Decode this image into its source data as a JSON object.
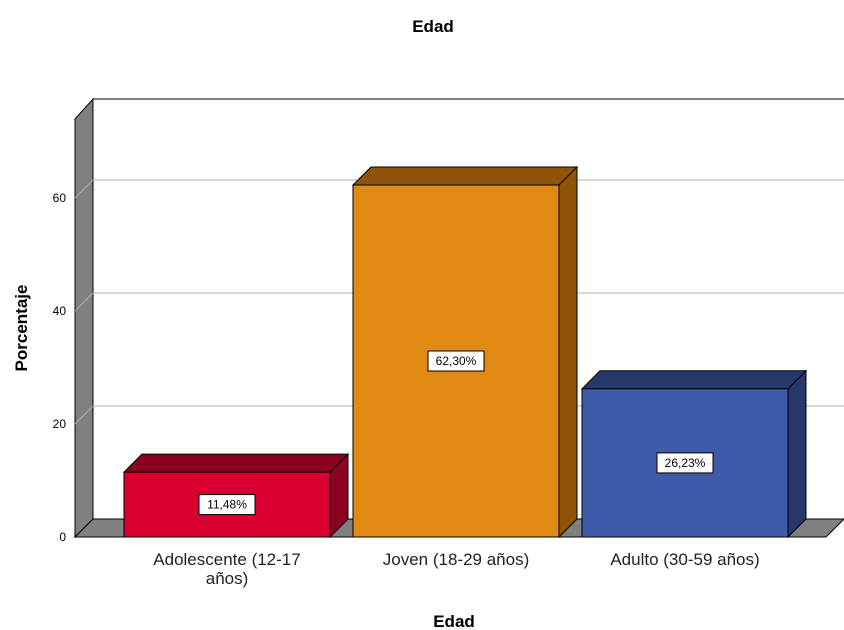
{
  "chart_data": {
    "type": "bar",
    "title": "Edad",
    "xlabel": "Edad",
    "ylabel": "Porcentaje",
    "ylim": [
      0,
      70
    ],
    "yticks": [
      0,
      20,
      40,
      60
    ],
    "categories": [
      [
        "Adolescente (12-17",
        "años)"
      ],
      [
        "Joven (18-29 años)"
      ],
      [
        "Adulto (30-59 años)"
      ]
    ],
    "values": [
      11.48,
      62.3,
      26.23
    ],
    "data_labels": [
      "11,48%",
      "62,30%",
      "26,23%"
    ],
    "colors": {
      "front": [
        "#d7002f",
        "#e08a14",
        "#3f5aa8"
      ],
      "top": [
        "#8c0020",
        "#8f530a",
        "#27386b"
      ],
      "side": [
        "#8c0020",
        "#8f530a",
        "#27386b"
      ]
    },
    "grid": true,
    "legend": "none",
    "style": "3d"
  }
}
